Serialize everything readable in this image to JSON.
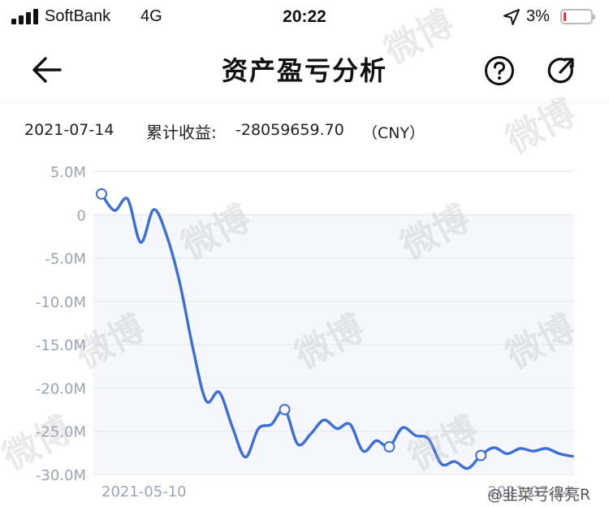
{
  "status_bar": {
    "carrier": "SoftBank",
    "network": "4G",
    "time": "20:22",
    "battery": "3%",
    "icons": [
      "signal-icon",
      "location-arrow-icon",
      "battery-icon"
    ]
  },
  "nav": {
    "title": "资产盈亏分析",
    "icons": [
      "back-arrow-icon",
      "help-icon",
      "share-icon"
    ]
  },
  "summary": {
    "date": "2021-07-14",
    "label": "累计收益:",
    "value": "-28059659.70",
    "currency": "（CNY）"
  },
  "watermark": "微博",
  "footer_mark": "@韭菜亏得亮R",
  "colors": {
    "line": "#3b6fd6",
    "plot_bg": "#f5f7fc",
    "grid": "#e3e6ee",
    "axis_text": "#9aa3b5"
  },
  "chart_data": {
    "type": "area",
    "y_ticks": [
      "5.0M",
      "0",
      "-5.0M",
      "-10.0M",
      "-15.0M",
      "-20.0M",
      "-25.0M",
      "-30.0M"
    ],
    "y_tick_values": [
      5,
      0,
      -5,
      -10,
      -15,
      -20,
      -25,
      -30
    ],
    "ylim": [
      -30,
      5
    ],
    "x_labels": [
      "2021-05-10",
      "2021-07-14"
    ],
    "y_unit": "M",
    "series": [
      {
        "values": [
          2.4,
          0.5,
          1.8,
          -3.2,
          0.6,
          -2.5,
          -8,
          -15.5,
          -21.5,
          -20.5,
          -24.5,
          -28,
          -24.7,
          -24.2,
          -22.5,
          -26.5,
          -25.3,
          -23.7,
          -24.7,
          -24.2,
          -27.3,
          -26.1,
          -26.8,
          -24.6,
          -25.5,
          -25.9,
          -28.8,
          -28.5,
          -29.3,
          -27.8,
          -26.9,
          -27.6,
          -27.0,
          -27.3,
          -27.0,
          -27.6,
          -27.9
        ],
        "markers": [
          0,
          14,
          22,
          29
        ]
      }
    ]
  }
}
